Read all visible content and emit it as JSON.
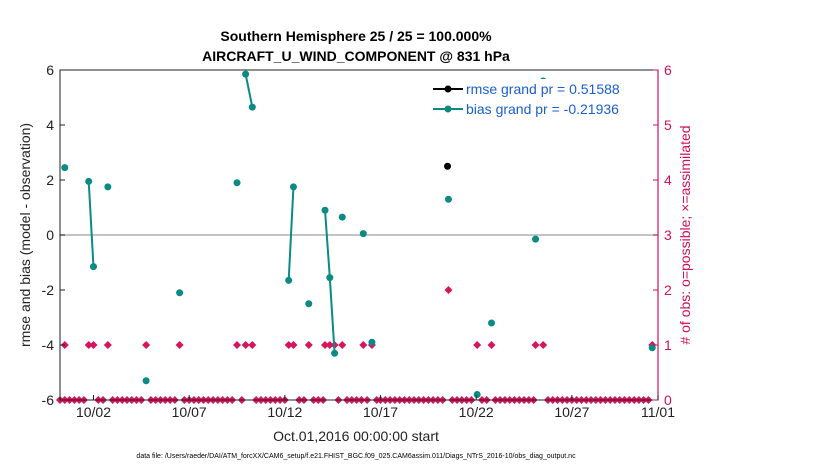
{
  "chart_data": {
    "type": "scatter",
    "title": "Southern Hemisphere 25 / 25 = 100.000%",
    "subtitle": "AIRCRAFT_U_WIND_COMPONENT @ 831 hPa",
    "xlabel": "Oct.01,2016 00:00:00 start",
    "ylabel": "rmse and bias (model - observation)",
    "y2label": "# of obs: o=possible; ×=assimilated",
    "footer": "data file: /Users/raeder/DAI/ATM_forcXX/CAM6_setup/f.e21.FHIST_BGC.f09_025.CAM6assim.011/Diags_NTrS_2016-10/obs_diag_output.nc",
    "xlim": [
      0.25,
      31.5
    ],
    "ylim": [
      -6,
      6
    ],
    "y2lim": [
      0,
      6
    ],
    "x_ticks": [
      {
        "x": 2,
        "label": "10/02"
      },
      {
        "x": 7,
        "label": "10/07"
      },
      {
        "x": 12,
        "label": "10/12"
      },
      {
        "x": 17,
        "label": "10/17"
      },
      {
        "x": 22,
        "label": "10/22"
      },
      {
        "x": 27,
        "label": "10/27"
      },
      {
        "x": 32,
        "label": "11/01"
      }
    ],
    "y_ticks": [
      "6",
      "4",
      "2",
      "0",
      "-2",
      "-4",
      "-6"
    ],
    "y2_ticks": [
      "6",
      "5",
      "4",
      "3",
      "2",
      "1",
      "0"
    ],
    "zero_line": 0,
    "colors": {
      "rmse": "#000000",
      "bias": "#0c8a84",
      "obs": "#d8145c",
      "zero": "#b0b0b0",
      "axis_r": "#d0105a",
      "legend_text": "#1a5fd0"
    },
    "legend": {
      "position": "top-right",
      "entries": [
        "rmse grand pr = 0.51588",
        "bias grand pr = -0.21936"
      ]
    },
    "series": [
      {
        "key": "rmse",
        "points": [
          [
            20.5,
            2.5
          ]
        ]
      },
      {
        "key": "bias",
        "points": [
          [
            0.5,
            2.45
          ],
          null,
          [
            1.75,
            1.95
          ],
          [
            2.0,
            -1.15
          ],
          null,
          [
            2.75,
            1.75
          ],
          null,
          [
            4.75,
            -5.3
          ],
          null,
          [
            6.5,
            -2.1
          ],
          null,
          [
            9.5,
            1.9
          ],
          null,
          [
            9.95,
            5.85
          ],
          [
            10.3,
            4.65
          ],
          null,
          [
            12.2,
            -1.65
          ],
          [
            12.45,
            1.75
          ],
          null,
          [
            13.25,
            -2.5
          ],
          null,
          [
            14.1,
            0.9
          ],
          [
            14.35,
            -1.55
          ],
          [
            14.6,
            -4.3
          ],
          null,
          [
            15.0,
            0.65
          ],
          null,
          [
            16.1,
            0.05
          ],
          null,
          [
            16.55,
            -3.9
          ],
          null,
          [
            20.55,
            1.3
          ],
          null,
          [
            22.05,
            -5.8
          ],
          null,
          [
            22.8,
            -3.2
          ],
          null,
          [
            25.1,
            -0.15
          ],
          null,
          [
            25.5,
            5.6
          ],
          null,
          [
            31.2,
            -4.1
          ]
        ]
      }
    ],
    "obs_possible_diamonds": [
      [
        0.5,
        1
      ],
      [
        1.75,
        1
      ],
      [
        2.0,
        1
      ],
      [
        2.75,
        1
      ],
      [
        4.75,
        1
      ],
      [
        6.5,
        1
      ],
      [
        9.5,
        1
      ],
      [
        9.95,
        1
      ],
      [
        10.3,
        1
      ],
      [
        12.2,
        1
      ],
      [
        12.45,
        1
      ],
      [
        13.25,
        1
      ],
      [
        14.1,
        1
      ],
      [
        14.35,
        1
      ],
      [
        14.6,
        1
      ],
      [
        15.0,
        1
      ],
      [
        16.1,
        1
      ],
      [
        16.55,
        1
      ],
      [
        20.55,
        2
      ],
      [
        22.05,
        1
      ],
      [
        22.8,
        1
      ],
      [
        25.1,
        1
      ],
      [
        25.5,
        1
      ],
      [
        31.2,
        1
      ]
    ],
    "obs_zero_diamonds_x": [
      0.25,
      0.5,
      0.75,
      1.0,
      1.25,
      1.5,
      2.25,
      2.5,
      3.0,
      3.25,
      3.5,
      3.75,
      4.0,
      4.25,
      4.5,
      5.0,
      5.25,
      5.5,
      5.75,
      6.0,
      6.25,
      6.75,
      7.0,
      7.25,
      7.5,
      7.75,
      8.0,
      8.25,
      8.5,
      8.75,
      9.0,
      9.25,
      9.75,
      10.5,
      10.75,
      11.0,
      11.25,
      11.5,
      11.75,
      12.0,
      12.75,
      13.0,
      13.5,
      13.75,
      14.0,
      14.8,
      15.25,
      15.5,
      15.75,
      16.0,
      16.3,
      16.8,
      17.0,
      17.25,
      17.5,
      17.75,
      18.0,
      18.25,
      18.5,
      18.75,
      19.0,
      19.25,
      19.5,
      19.75,
      20.0,
      20.25,
      20.75,
      21.0,
      21.25,
      21.5,
      21.75,
      22.3,
      22.55,
      23.0,
      23.25,
      23.5,
      23.75,
      24.0,
      24.25,
      24.5,
      24.75,
      25.0,
      25.75,
      26.0,
      26.25,
      26.5,
      26.75,
      27.0,
      27.25,
      27.5,
      27.75,
      28.0,
      28.25,
      28.5,
      28.75,
      29.0,
      29.25,
      29.5,
      29.75,
      30.0,
      30.25,
      30.5,
      30.75,
      31.0
    ]
  }
}
